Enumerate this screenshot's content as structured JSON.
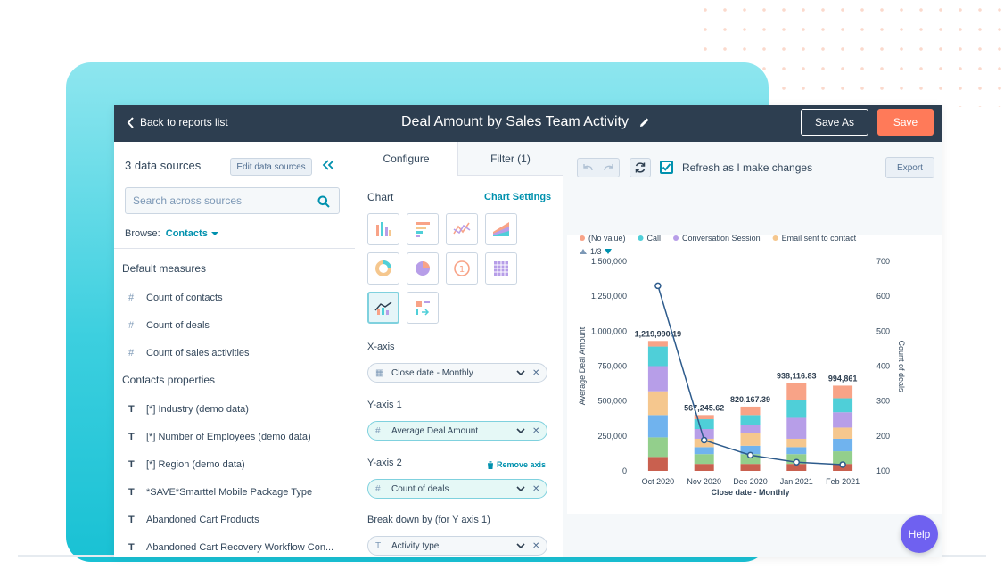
{
  "topbar": {
    "back_label": "Back to reports list",
    "title": "Deal Amount by Sales Team Activity",
    "save_as_label": "Save As",
    "save_label": "Save"
  },
  "left_panel": {
    "data_sources_title": "3 data sources",
    "edit_sources_label": "Edit data sources",
    "search_placeholder": "Search across sources",
    "browse_label": "Browse:",
    "browse_value": "Contacts",
    "default_measures_title": "Default measures",
    "measures": [
      "Count of contacts",
      "Count of deals",
      "Count of sales activities"
    ],
    "contacts_properties_title": "Contacts properties",
    "properties": [
      "[*] Industry (demo data)",
      "[*] Number of Employees (demo data)",
      "[*] Region (demo data)",
      "*SAVE*Smarttel Mobile Package Type",
      "Abandoned Cart Products",
      "Abandoned Cart Recovery Workflow Con..."
    ]
  },
  "config_panel": {
    "tab_configure": "Configure",
    "tab_filter": "Filter (1)",
    "chart_label": "Chart",
    "chart_settings_label": "Chart Settings",
    "chart_types": [
      "vertical-bar-chart-icon",
      "horizontal-bar-chart-icon",
      "line-chart-icon",
      "area-chart-icon",
      "donut-chart-icon",
      "pie-chart-icon",
      "single-value-icon",
      "pivot-table-icon",
      "combo-chart-icon",
      "table-icon"
    ],
    "x_axis_label": "X-axis",
    "x_axis_value": "Close date - Monthly",
    "y_axis1_label": "Y-axis 1",
    "y_axis1_value": "Average Deal Amount",
    "y_axis2_label": "Y-axis 2",
    "remove_axis_label": "Remove axis",
    "y_axis2_value": "Count of deals",
    "breakdown_label": "Break down by (for Y axis 1)",
    "breakdown_value": "Activity type"
  },
  "toolbar": {
    "refresh_label": "Refresh as I make changes",
    "refresh_checked": true,
    "export_label": "Export"
  },
  "help_label": "Help",
  "chart_data": {
    "type": "bar",
    "categories": [
      "Oct 2020",
      "Nov 2020",
      "Dec 2020",
      "Jan 2021",
      "Feb 2021"
    ],
    "legend": [
      {
        "name": "(No value)",
        "color": "#f8a387"
      },
      {
        "name": "Call",
        "color": "#4fcfd8"
      },
      {
        "name": "Conversation Session",
        "color": "#b79ee8"
      },
      {
        "name": "Email sent to contact",
        "color": "#f5c78e"
      }
    ],
    "legend_page": "1/3",
    "series": [
      {
        "color": "#c9604f",
        "values": [
          100000,
          50000,
          50000,
          50000,
          50000
        ]
      },
      {
        "color": "#93cf8c",
        "values": [
          140000,
          70000,
          70000,
          70000,
          90000
        ]
      },
      {
        "color": "#70b3ee",
        "values": [
          160000,
          50000,
          60000,
          50000,
          90000
        ]
      },
      {
        "color": "#f5c78e",
        "values": [
          170000,
          60000,
          90000,
          60000,
          80000
        ]
      },
      {
        "color": "#b79ee8",
        "values": [
          180000,
          70000,
          60000,
          150000,
          110000
        ]
      },
      {
        "color": "#4fcfd8",
        "values": [
          140000,
          70000,
          70000,
          130000,
          100000
        ]
      },
      {
        "color": "#f8a387",
        "values": [
          40000,
          30000,
          60000,
          120000,
          90000
        ]
      }
    ],
    "bar_totals": [
      "1,219,990.19",
      "567,245.62",
      "820,167.39",
      "938,116.83",
      "994,861"
    ],
    "line": {
      "axis": "right",
      "values": [
        630,
        188,
        145,
        125,
        118
      ]
    },
    "xlabel": "Close date - Monthly",
    "ylabel_left": "Average Deal Amount",
    "ylabel_right": "Count of deals",
    "yticks_left": [
      "0",
      "250,000",
      "500,000",
      "750,000",
      "1,000,000",
      "1,250,000",
      "1,500,000"
    ],
    "yticks_right": [
      "100",
      "200",
      "300",
      "400",
      "500",
      "600",
      "700"
    ],
    "ylim_left": [
      0,
      1500000
    ],
    "ylim_right": [
      100,
      700
    ],
    "legend_position": "top",
    "grid": false
  }
}
